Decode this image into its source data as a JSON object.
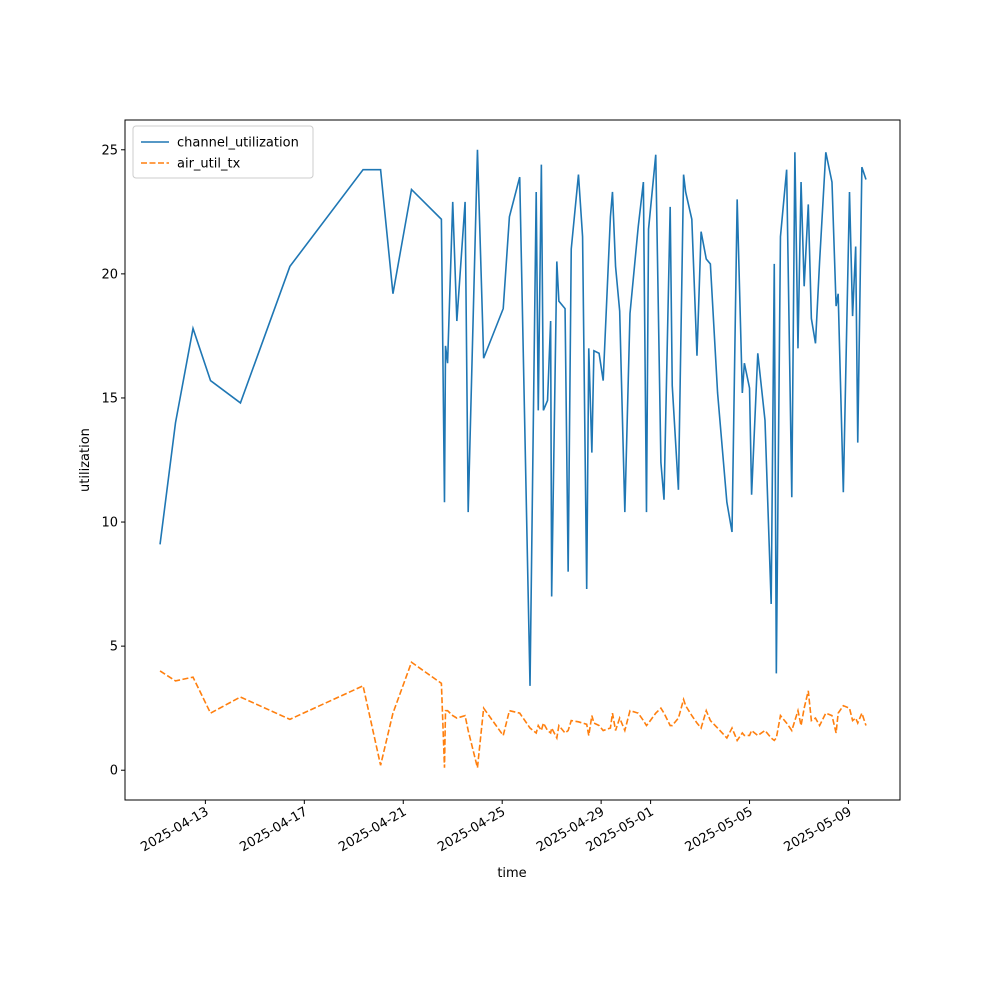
{
  "chart_data": {
    "type": "line",
    "xlabel": "time",
    "ylabel": "utilization",
    "x": [
      "2025-04-11T04:00",
      "2025-04-11T19:00",
      "2025-04-12T12:00",
      "2025-04-13T05:00",
      "2025-04-14T10:00",
      "2025-04-16T10:00",
      "2025-04-19T09:00",
      "2025-04-20T02:00",
      "2025-04-20T14:00",
      "2025-04-21T08:00",
      "2025-04-22T13:00",
      "2025-04-22T16:00",
      "2025-04-22T17:00",
      "2025-04-22T19:00",
      "2025-04-23T00:00",
      "2025-04-23T04:00",
      "2025-04-23T12:00",
      "2025-04-23T15:00",
      "2025-04-24T00:00",
      "2025-04-24T06:00",
      "2025-04-25T01:00",
      "2025-04-25T07:00",
      "2025-04-25T17:00",
      "2025-04-26T03:00",
      "2025-04-26T09:00",
      "2025-04-26T11:00",
      "2025-04-26T14:00",
      "2025-04-26T16:00",
      "2025-04-26T20:00",
      "2025-04-26T23:00",
      "2025-04-27T00:00",
      "2025-04-27T05:00",
      "2025-04-27T07:00",
      "2025-04-27T13:00",
      "2025-04-27T16:00",
      "2025-04-27T19:00",
      "2025-04-28T02:00",
      "2025-04-28T06:00",
      "2025-04-28T10:00",
      "2025-04-28T12:00",
      "2025-04-28T15:00",
      "2025-04-28T17:00",
      "2025-04-28T22:00",
      "2025-04-29T02:00",
      "2025-04-29T09:00",
      "2025-04-29T11:00",
      "2025-04-29T14:00",
      "2025-04-29T18:00",
      "2025-04-29T23:00",
      "2025-04-30T04:00",
      "2025-04-30T12:00",
      "2025-04-30T17:00",
      "2025-04-30T20:00",
      "2025-04-30T22:00",
      "2025-05-01T05:00",
      "2025-05-01T10:00",
      "2025-05-01T13:00",
      "2025-05-01T19:00",
      "2025-05-01T21:00",
      "2025-05-02T03:00",
      "2025-05-02T08:00",
      "2025-05-02T10:00",
      "2025-05-02T16:00",
      "2025-05-02T21:00",
      "2025-05-03T01:00",
      "2025-05-03T06:00",
      "2025-05-03T10:00",
      "2025-05-03T17:00",
      "2025-05-04T02:00",
      "2025-05-04T07:00",
      "2025-05-04T12:00",
      "2025-05-04T17:00",
      "2025-05-04T19:00",
      "2025-05-05T00:00",
      "2025-05-05T02:00",
      "2025-05-05T08:00",
      "2025-05-05T15:00",
      "2025-05-05T21:00",
      "2025-05-06T00:00",
      "2025-05-06T02:00",
      "2025-05-06T06:00",
      "2025-05-06T12:00",
      "2025-05-06T17:00",
      "2025-05-06T20:00",
      "2025-05-06T23:00",
      "2025-05-07T02:00",
      "2025-05-07T05:00",
      "2025-05-07T09:00",
      "2025-05-07T12:00",
      "2025-05-07T16:00",
      "2025-05-07T20:00",
      "2025-05-08T02:00",
      "2025-05-08T08:00",
      "2025-05-08T12:00",
      "2025-05-08T14:00",
      "2025-05-08T19:00",
      "2025-05-09T01:00",
      "2025-05-09T04:00",
      "2025-05-09T07:00",
      "2025-05-09T09:00",
      "2025-05-09T13:00",
      "2025-05-09T17:00"
    ],
    "series": [
      {
        "name": "channel_utilization",
        "color": "#1f77b4",
        "dash": false,
        "values": [
          9.1,
          14,
          17.8,
          15.7,
          14.8,
          20.3,
          24.2,
          24.2,
          19.2,
          23.4,
          22.2,
          10.8,
          17.1,
          16.4,
          22.9,
          18.1,
          22.9,
          10.4,
          25,
          16.6,
          18.6,
          22.3,
          23.9,
          3.4,
          23.3,
          14.5,
          24.4,
          14.5,
          14.9,
          18.1,
          7.0,
          20.5,
          18.9,
          18.6,
          8.0,
          21,
          24,
          21.5,
          7.3,
          17,
          12.8,
          16.9,
          16.8,
          15.7,
          22.3,
          23.3,
          20.3,
          18.5,
          10.4,
          18.4,
          21.9,
          23.7,
          10.4,
          21.8,
          24.8,
          12.4,
          10.9,
          22.7,
          15.5,
          11.3,
          24,
          23.3,
          22.2,
          16.7,
          21.7,
          20.6,
          20.4,
          15.2,
          10.8,
          9.6,
          23.0,
          15.2,
          16.4,
          15.4,
          11.1,
          16.8,
          14.1,
          6.7,
          20.4,
          3.9,
          21.5,
          24.2,
          11,
          24.9,
          17,
          23.7,
          19.5,
          22.8,
          18.2,
          17.2,
          20.5,
          24.9,
          23.7,
          18.7,
          19.2,
          11.2,
          23.3,
          18.3,
          21.1,
          13.2,
          24.3,
          23.8
        ]
      },
      {
        "name": "air_util_tx",
        "color": "#ff7f0e",
        "dash": true,
        "values": [
          4.0,
          3.6,
          3.75,
          2.3,
          2.95,
          2.05,
          3.4,
          0.2,
          2.3,
          4.35,
          3.5,
          0.1,
          2.4,
          2.4,
          2.2,
          2.1,
          2.2,
          1.6,
          0.1,
          2.5,
          1.4,
          2.4,
          2.3,
          1.7,
          1.5,
          1.8,
          1.6,
          1.9,
          1.6,
          1.5,
          1.7,
          1.3,
          1.8,
          1.5,
          1.6,
          2.0,
          1.95,
          1.9,
          1.85,
          1.4,
          2.2,
          1.9,
          1.8,
          1.6,
          1.7,
          2.3,
          1.6,
          2.1,
          1.6,
          2.4,
          2.3,
          2.0,
          1.8,
          1.9,
          2.3,
          2.5,
          2.3,
          1.8,
          1.8,
          2.1,
          2.85,
          2.6,
          2.2,
          1.9,
          1.7,
          2.4,
          2.0,
          1.7,
          1.3,
          1.7,
          1.2,
          1.5,
          1.4,
          1.4,
          1.6,
          1.4,
          1.6,
          1.3,
          1.2,
          1.3,
          2.2,
          1.9,
          1.6,
          2.0,
          2.4,
          1.8,
          2.5,
          3.2,
          2.0,
          2.1,
          1.8,
          2.3,
          2.2,
          1.5,
          2.3,
          2.6,
          2.5,
          2.0,
          2.1,
          1.9,
          2.3,
          1.8
        ]
      }
    ],
    "xlim": [
      "2025-04-09T18:00",
      "2025-05-11T02:00"
    ],
    "xticks": [
      "2025-04-13",
      "2025-04-17",
      "2025-04-21",
      "2025-04-25",
      "2025-04-29",
      "2025-05-01",
      "2025-05-05",
      "2025-05-09"
    ],
    "ylim": [
      -1.2,
      26.2
    ],
    "yticks": [
      0,
      5,
      10,
      15,
      20,
      25
    ],
    "legend": "upper left"
  }
}
